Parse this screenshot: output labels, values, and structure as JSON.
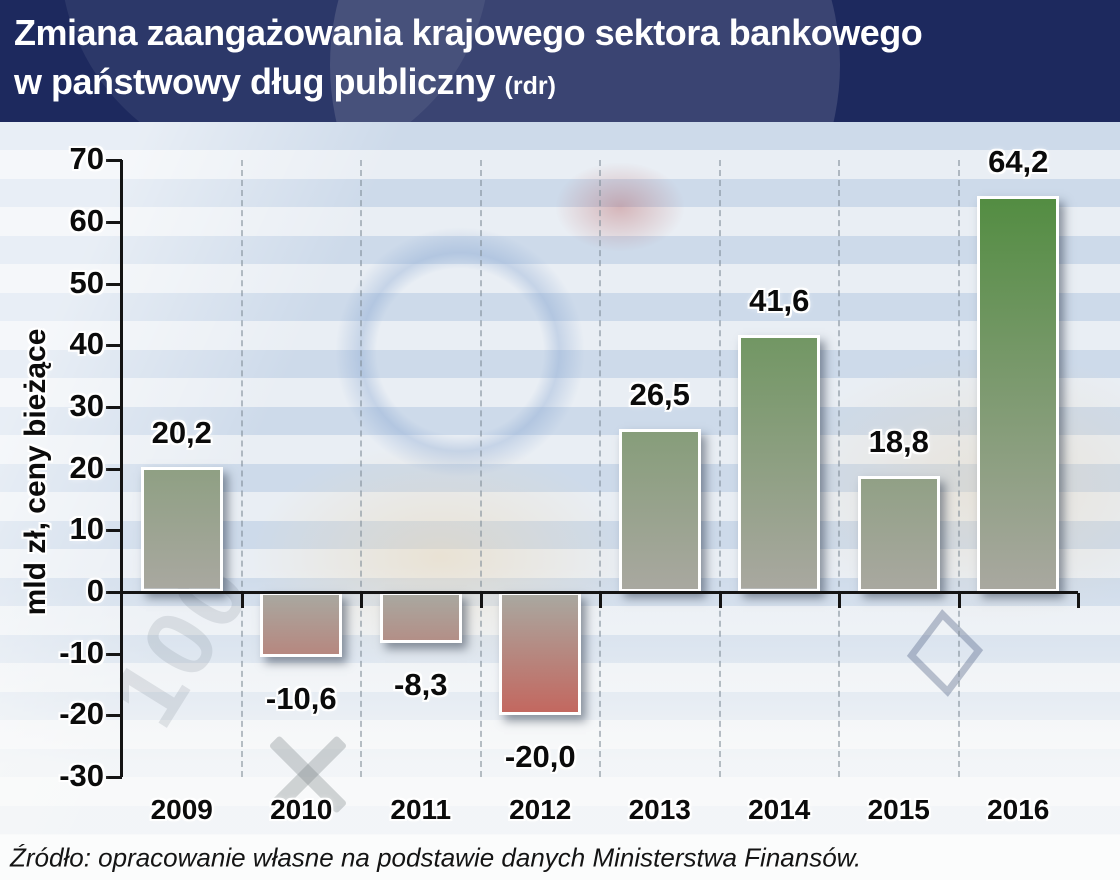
{
  "header": {
    "title_line1": "Zmiana zaangażowania krajowego sektora bankowego",
    "title_line2": "w państwowy dług publiczny",
    "title_suffix": "(rdr)"
  },
  "chart_data": {
    "type": "bar",
    "title": "Zmiana zaangażowania krajowego sektora bankowego w państwowy dług publiczny (rdr)",
    "categories": [
      "2009",
      "2010",
      "2011",
      "2012",
      "2013",
      "2014",
      "2015",
      "2016"
    ],
    "values": [
      20.2,
      -10.6,
      -8.3,
      -20.0,
      26.5,
      41.6,
      18.8,
      64.2
    ],
    "value_labels": [
      "20,2",
      "-10,6",
      "-8,3",
      "-20,0",
      "26,5",
      "41,6",
      "18,8",
      "64,2"
    ],
    "xlabel": "",
    "ylabel": "mld zł, ceny bieżące",
    "ylim": [
      -30,
      70
    ],
    "ytick_step": 10,
    "yticks": [
      70,
      60,
      50,
      40,
      30,
      20,
      10,
      0,
      -10,
      -20,
      -30
    ],
    "grid": "vertical-dashed",
    "legend_position": "none",
    "bar_colors": {
      "positive_top": "#4a8a38",
      "zero": "#a9a8a0",
      "negative_bottom": "#d2423a"
    }
  },
  "footer": {
    "source": "Źródło: opracowanie własne na podstawie danych Ministerstwa Finansów."
  },
  "decor": {
    "watermark_digits": "100"
  },
  "colors": {
    "header_bg": "#1d295e",
    "title_text": "#ffffff",
    "axis": "#141414",
    "plot_bg": "#e7edf4"
  }
}
